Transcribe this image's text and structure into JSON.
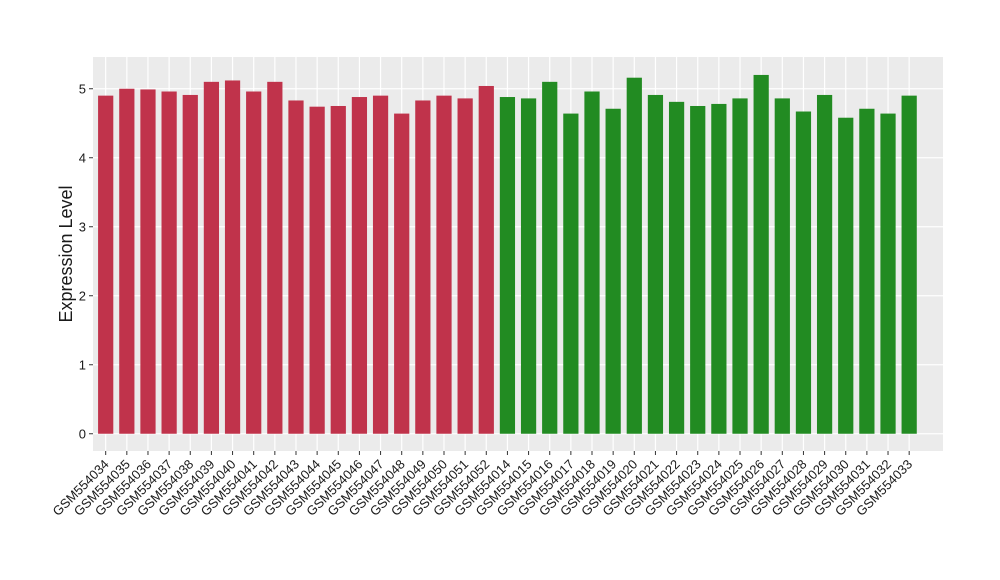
{
  "chart_data": {
    "type": "bar",
    "y_label": "Expression Level",
    "categories": [
      "GSM554034",
      "GSM554035",
      "GSM554036",
      "GSM554037",
      "GSM554038",
      "GSM554039",
      "GSM554040",
      "GSM554041",
      "GSM554042",
      "GSM554043",
      "GSM554044",
      "GSM554045",
      "GSM554046",
      "GSM554047",
      "GSM554048",
      "GSM554049",
      "GSM554050",
      "GSM554051",
      "GSM554052",
      "GSM554014",
      "GSM554015",
      "GSM554016",
      "GSM554017",
      "GSM554018",
      "GSM554019",
      "GSM554020",
      "GSM554021",
      "GSM554022",
      "GSM554023",
      "GSM554024",
      "GSM554025",
      "GSM554026",
      "GSM554027",
      "GSM554028",
      "GSM554029",
      "GSM554030",
      "GSM554031",
      "GSM554032",
      "GSM554033"
    ],
    "values": [
      4.9,
      5.0,
      4.99,
      4.96,
      4.91,
      5.1,
      5.12,
      4.96,
      5.1,
      4.83,
      4.74,
      4.75,
      4.88,
      4.9,
      4.64,
      4.83,
      4.9,
      4.86,
      5.04,
      4.88,
      4.86,
      5.1,
      4.64,
      4.96,
      4.71,
      5.16,
      4.91,
      4.81,
      4.75,
      4.78,
      4.86,
      5.2,
      4.86,
      4.67,
      4.91,
      4.58,
      4.71,
      4.64,
      4.9
    ],
    "colors": [
      "#c0334b",
      "#c0334b",
      "#c0334b",
      "#c0334b",
      "#c0334b",
      "#c0334b",
      "#c0334b",
      "#c0334b",
      "#c0334b",
      "#c0334b",
      "#c0334b",
      "#c0334b",
      "#c0334b",
      "#c0334b",
      "#c0334b",
      "#c0334b",
      "#c0334b",
      "#c0334b",
      "#c0334b",
      "#228b22",
      "#228b22",
      "#228b22",
      "#228b22",
      "#228b22",
      "#228b22",
      "#228b22",
      "#228b22",
      "#228b22",
      "#228b22",
      "#228b22",
      "#228b22",
      "#228b22",
      "#228b22",
      "#228b22",
      "#228b22",
      "#228b22",
      "#228b22",
      "#228b22",
      "#228b22"
    ],
    "ylim": [
      -0.25,
      5.46
    ],
    "yticks": [
      0,
      1,
      2,
      3,
      4,
      5
    ],
    "grid": true,
    "panel_color": "#ebebeb"
  }
}
